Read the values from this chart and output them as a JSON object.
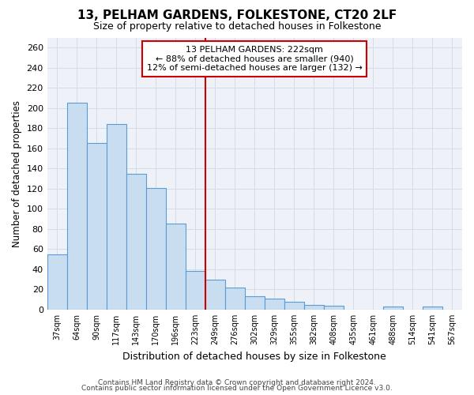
{
  "title": "13, PELHAM GARDENS, FOLKESTONE, CT20 2LF",
  "subtitle": "Size of property relative to detached houses in Folkestone",
  "xlabel": "Distribution of detached houses by size in Folkestone",
  "ylabel": "Number of detached properties",
  "categories": [
    "37sqm",
    "64sqm",
    "90sqm",
    "117sqm",
    "143sqm",
    "170sqm",
    "196sqm",
    "223sqm",
    "249sqm",
    "276sqm",
    "302sqm",
    "329sqm",
    "355sqm",
    "382sqm",
    "408sqm",
    "435sqm",
    "461sqm",
    "488sqm",
    "514sqm",
    "541sqm",
    "567sqm"
  ],
  "values": [
    55,
    205,
    165,
    184,
    135,
    121,
    85,
    38,
    30,
    22,
    13,
    11,
    8,
    5,
    4,
    0,
    0,
    3,
    0,
    3,
    0
  ],
  "bar_color": "#c9ddf0",
  "bar_edge_color": "#5b9bd5",
  "vline_position": 7.5,
  "vline_color": "#cc0000",
  "annotation_title": "13 PELHAM GARDENS: 222sqm",
  "annotation_line1": "← 88% of detached houses are smaller (940)",
  "annotation_line2": "12% of semi-detached houses are larger (132) →",
  "annotation_box_color": "#ffffff",
  "annotation_box_edge": "#cc0000",
  "ylim": [
    0,
    270
  ],
  "yticks": [
    0,
    20,
    40,
    60,
    80,
    100,
    120,
    140,
    160,
    180,
    200,
    220,
    240,
    260
  ],
  "grid_color": "#d4dce8",
  "plot_bg_color": "#eef2f8",
  "fig_bg_color": "#ffffff",
  "footer1": "Contains HM Land Registry data © Crown copyright and database right 2024.",
  "footer2": "Contains public sector information licensed under the Open Government Licence v3.0."
}
